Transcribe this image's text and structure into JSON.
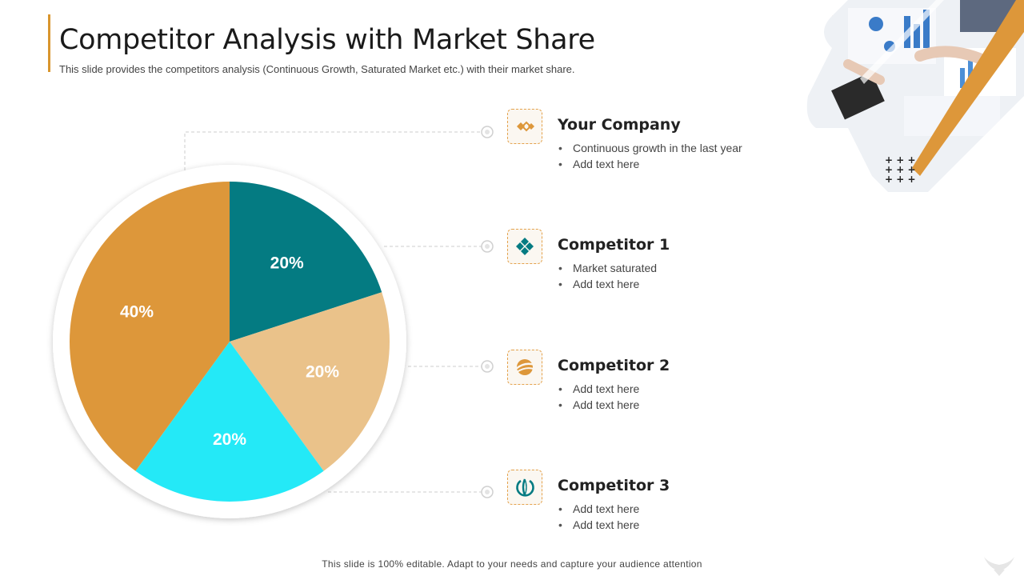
{
  "header": {
    "title": "Competitor Analysis with Market Share",
    "subtitle": "This slide provides the competitors analysis (Continuous Growth, Saturated Market etc.) with their market share."
  },
  "chart_data": {
    "type": "pie",
    "slices": [
      {
        "label": "Competitor 1",
        "value": 20,
        "display": "20%",
        "color": "#047b82"
      },
      {
        "label": "Competitor 2",
        "value": 20,
        "display": "20%",
        "color": "#eac28a"
      },
      {
        "label": "Competitor 3",
        "value": 20,
        "display": "20%",
        "color": "#24e9f7"
      },
      {
        "label": "Your Company",
        "value": 40,
        "display": "40%",
        "color": "#dd973a"
      }
    ]
  },
  "items": [
    {
      "title": "Your Company",
      "icon": "diamond-chain-icon",
      "bullets": [
        "Continuous growth in the last  year",
        "Add text here"
      ]
    },
    {
      "title": "Competitor 1",
      "icon": "diamond-cluster-icon",
      "bullets": [
        "Market saturated",
        "Add text here"
      ]
    },
    {
      "title": "Competitor 2",
      "icon": "swoosh-globe-icon",
      "bullets": [
        "Add text here",
        "Add text here"
      ]
    },
    {
      "title": "Competitor 3",
      "icon": "circle-swirl-icon",
      "bullets": [
        "Add text here",
        "Add text here"
      ]
    }
  ],
  "decoration": {
    "photo": "business-meeting-photo",
    "pattern": "plus-pattern"
  },
  "footer": {
    "text": "This slide is 100% editable. Adapt to your needs and capture your audience attention"
  },
  "colors": {
    "accent": "#d9962e",
    "teal": "#047b82",
    "sand": "#eac28a",
    "cyan": "#24e9f7",
    "orange": "#dd973a"
  }
}
